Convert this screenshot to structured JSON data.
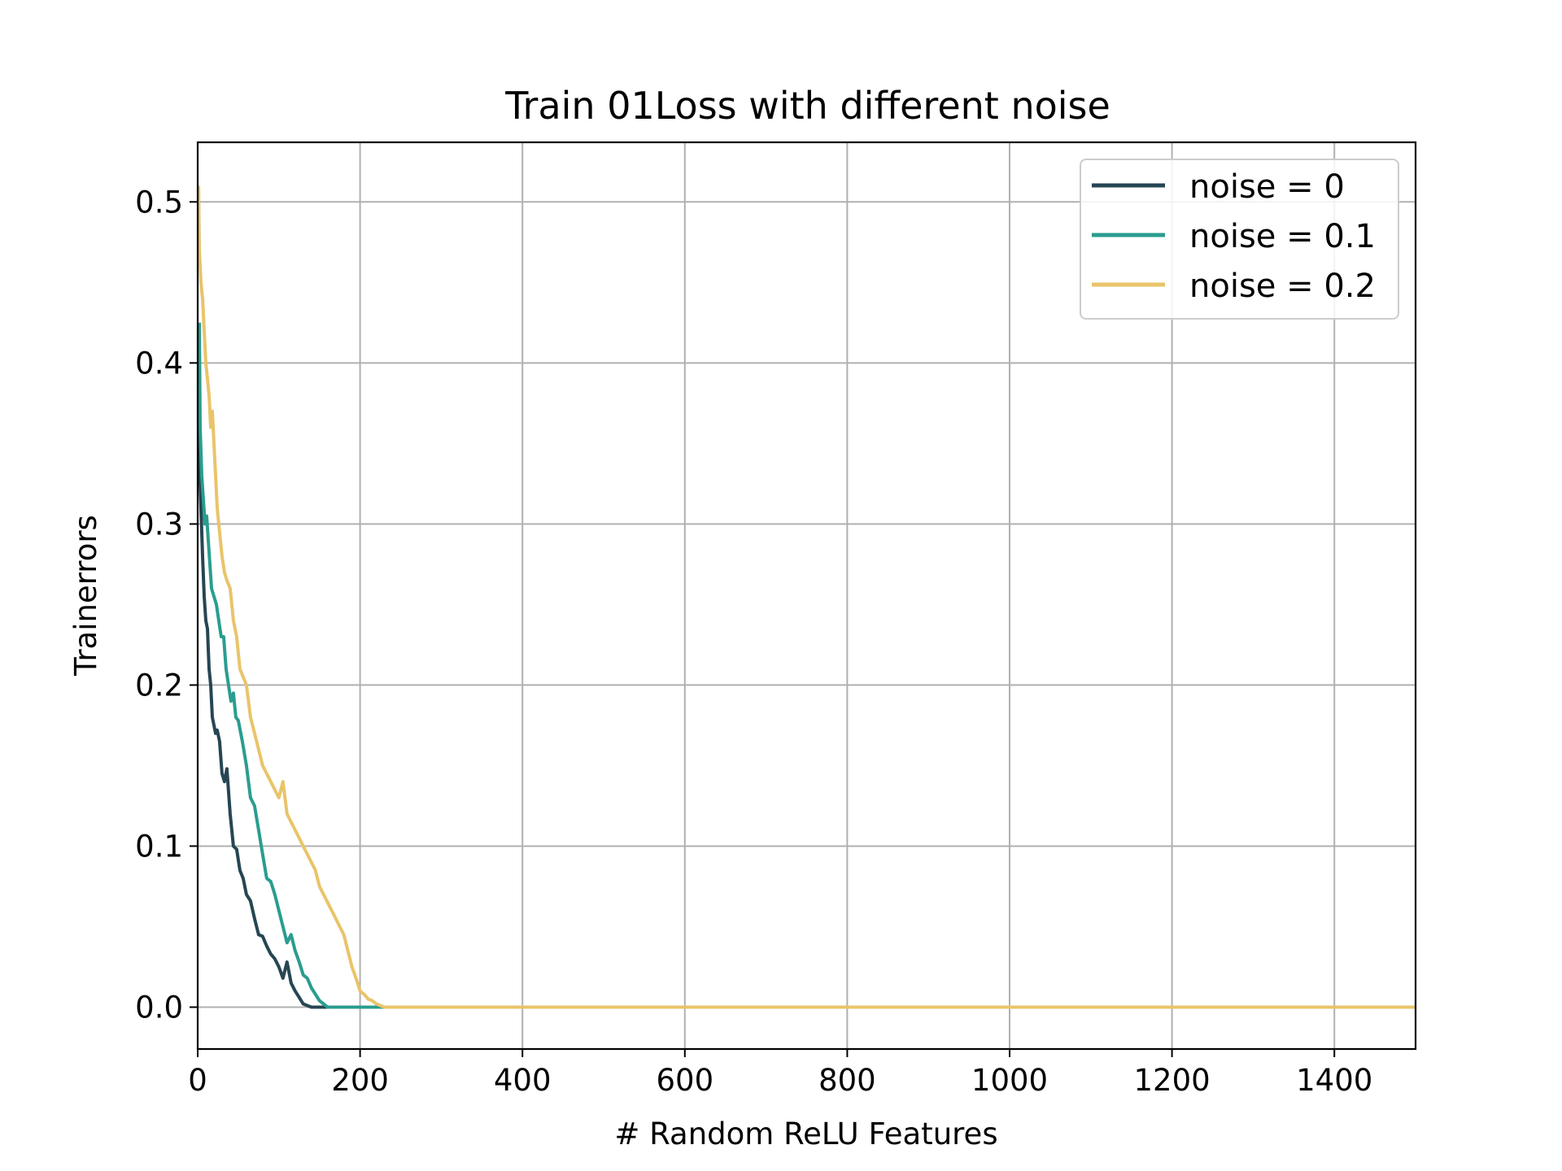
{
  "chart_data": {
    "type": "line",
    "title": "Train 01Loss with different noise",
    "xlabel": "# Random ReLU Features",
    "ylabel": "Trainerrors",
    "xlim": [
      0,
      1500
    ],
    "ylim": [
      -0.026,
      0.537
    ],
    "xticks": [
      0,
      200,
      400,
      600,
      800,
      1000,
      1200,
      1400
    ],
    "yticks": [
      0.0,
      0.1,
      0.2,
      0.3,
      0.4,
      0.5
    ],
    "xtick_labels": [
      "0",
      "200",
      "400",
      "600",
      "800",
      "1000",
      "1200",
      "1400"
    ],
    "ytick_labels": [
      "0.0",
      "0.1",
      "0.2",
      "0.3",
      "0.4",
      "0.5"
    ],
    "grid": true,
    "legend_position": "top-right",
    "series": [
      {
        "name": "noise = 0",
        "color": "#264653",
        "x": [
          1,
          2,
          4,
          6,
          8,
          10,
          12,
          14,
          16,
          18,
          20,
          22,
          24,
          27,
          30,
          33,
          36,
          40,
          44,
          48,
          52,
          56,
          60,
          65,
          70,
          75,
          80,
          85,
          90,
          95,
          100,
          105,
          110,
          115,
          120,
          125,
          130,
          140,
          150,
          200,
          400,
          600,
          800,
          1000,
          1200,
          1500
        ],
        "y": [
          0.4,
          0.34,
          0.31,
          0.28,
          0.255,
          0.24,
          0.235,
          0.21,
          0.2,
          0.18,
          0.175,
          0.17,
          0.172,
          0.165,
          0.145,
          0.14,
          0.148,
          0.12,
          0.1,
          0.098,
          0.085,
          0.08,
          0.07,
          0.066,
          0.055,
          0.045,
          0.044,
          0.038,
          0.033,
          0.03,
          0.025,
          0.018,
          0.028,
          0.015,
          0.01,
          0.006,
          0.002,
          0.0,
          0.0,
          0.0,
          0.0,
          0.0,
          0.0,
          0.0,
          0.0,
          0.0
        ]
      },
      {
        "name": "noise = 0.1",
        "color": "#2a9d8f",
        "x": [
          2,
          3,
          5,
          7,
          9,
          11,
          13,
          15,
          17,
          20,
          23,
          26,
          29,
          32,
          35,
          38,
          41,
          44,
          47,
          50,
          55,
          60,
          65,
          70,
          75,
          80,
          85,
          90,
          95,
          100,
          105,
          110,
          115,
          120,
          125,
          130,
          135,
          140,
          145,
          150,
          155,
          160,
          180,
          225,
          400,
          600,
          800,
          1000,
          1200,
          1500
        ],
        "y": [
          0.425,
          0.36,
          0.33,
          0.315,
          0.3,
          0.305,
          0.29,
          0.275,
          0.26,
          0.255,
          0.25,
          0.24,
          0.23,
          0.23,
          0.21,
          0.2,
          0.19,
          0.195,
          0.18,
          0.178,
          0.165,
          0.15,
          0.13,
          0.125,
          0.11,
          0.095,
          0.08,
          0.078,
          0.07,
          0.06,
          0.05,
          0.04,
          0.045,
          0.035,
          0.028,
          0.02,
          0.018,
          0.012,
          0.008,
          0.004,
          0.002,
          0.0,
          0.0,
          0.0,
          0.0,
          0.0,
          0.0,
          0.0,
          0.0,
          0.0
        ]
      },
      {
        "name": "noise = 0.2",
        "color": "#e9c46a",
        "x": [
          1,
          2,
          4,
          6,
          8,
          10,
          12,
          14,
          16,
          18,
          20,
          22,
          24,
          26,
          28,
          30,
          33,
          36,
          40,
          44,
          48,
          52,
          56,
          60,
          65,
          70,
          75,
          80,
          85,
          90,
          95,
          100,
          105,
          110,
          115,
          120,
          125,
          130,
          135,
          140,
          145,
          150,
          155,
          160,
          165,
          170,
          175,
          180,
          185,
          190,
          195,
          200,
          205,
          210,
          215,
          220,
          225,
          230,
          235,
          240,
          400,
          600,
          800,
          1000,
          1200,
          1500
        ],
        "y": [
          0.51,
          0.47,
          0.45,
          0.44,
          0.42,
          0.4,
          0.39,
          0.38,
          0.36,
          0.37,
          0.35,
          0.33,
          0.31,
          0.3,
          0.29,
          0.28,
          0.27,
          0.265,
          0.26,
          0.24,
          0.23,
          0.21,
          0.205,
          0.2,
          0.18,
          0.17,
          0.16,
          0.15,
          0.145,
          0.14,
          0.135,
          0.13,
          0.14,
          0.12,
          0.115,
          0.11,
          0.105,
          0.1,
          0.095,
          0.09,
          0.085,
          0.075,
          0.07,
          0.065,
          0.06,
          0.055,
          0.05,
          0.045,
          0.035,
          0.025,
          0.018,
          0.01,
          0.008,
          0.005,
          0.004,
          0.002,
          0.001,
          0.0,
          0.0,
          0.0,
          0.0,
          0.0,
          0.0,
          0.0,
          0.0,
          0.0
        ]
      }
    ]
  }
}
